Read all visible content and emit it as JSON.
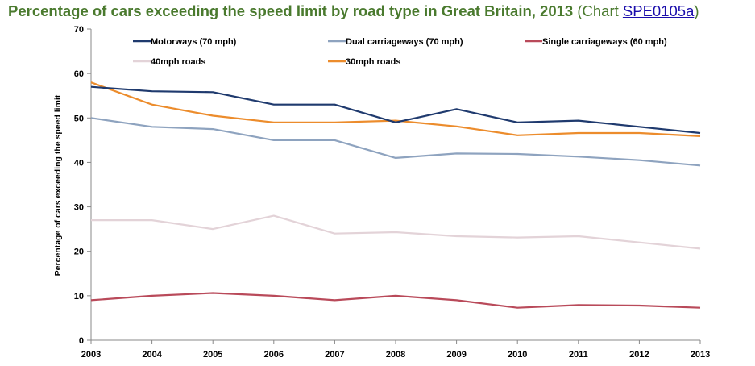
{
  "title": {
    "main": "Percentage of cars exceeding the speed limit by road type in Great Britain, 2013",
    "paren_open": " (Chart ",
    "link": "SPE0105a",
    "paren_close": ")"
  },
  "chart_data": {
    "type": "line",
    "title": "Percentage of cars exceeding the speed limit by road type in Great Britain, 2013",
    "xlabel": "",
    "ylabel": "Percentage of cars exceeding the speed limit",
    "x": [
      "2003",
      "2004",
      "2005",
      "2006",
      "2007",
      "2008",
      "2009",
      "2010",
      "2011",
      "2012",
      "2013"
    ],
    "ylim": [
      0,
      70
    ],
    "yticks": [
      0,
      10,
      20,
      30,
      40,
      50,
      60,
      70
    ],
    "grid": false,
    "legend_position": "top",
    "series": [
      {
        "name": "Motorways (70 mph)",
        "color": "#1f3a6e",
        "values": [
          57,
          56,
          55.8,
          53,
          53,
          49,
          52,
          49,
          49.4,
          48,
          46.6
        ]
      },
      {
        "name": "Dual carriageways (70 mph)",
        "color": "#8ea3bf",
        "values": [
          50,
          48,
          47.5,
          45,
          45,
          41,
          42,
          41.9,
          41.3,
          40.5,
          39.3
        ]
      },
      {
        "name": "Single carriageways (60 mph)",
        "color": "#b94a5a",
        "values": [
          9,
          10,
          10.6,
          10,
          9,
          10,
          9,
          7.3,
          7.9,
          7.8,
          7.3
        ]
      },
      {
        "name": "40mph roads",
        "color": "#e3d3d8",
        "values": [
          27,
          27,
          25,
          28,
          24,
          24.3,
          23.4,
          23.1,
          23.4,
          22,
          20.6
        ]
      },
      {
        "name": "30mph roads",
        "color": "#ec8c2c",
        "values": [
          58,
          53,
          50.5,
          49,
          49,
          49.4,
          48.1,
          46.1,
          46.6,
          46.6,
          45.9
        ]
      }
    ]
  }
}
